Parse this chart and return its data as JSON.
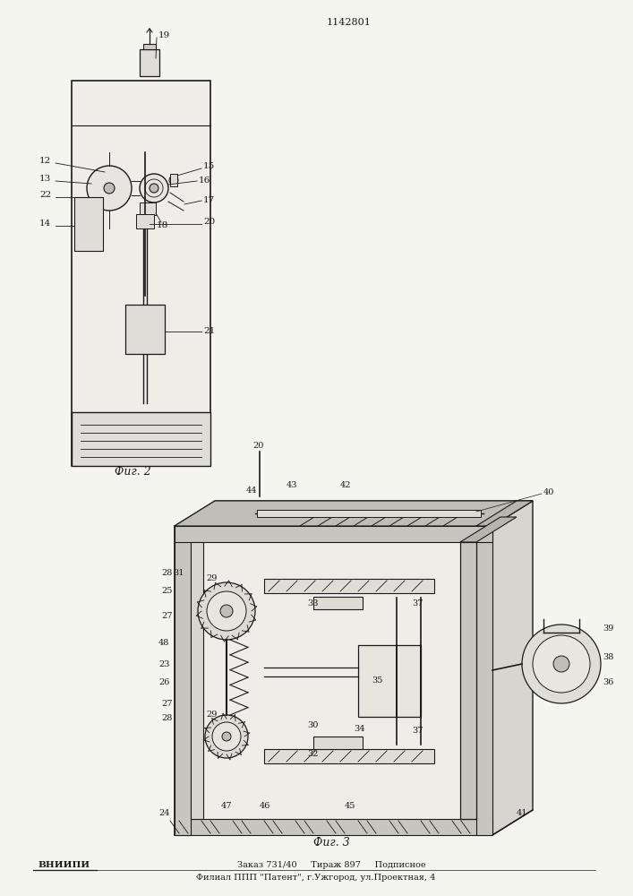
{
  "title": "1142801",
  "fig_width": 7.07,
  "fig_height": 10.0,
  "bg_color": "#f5f5f0",
  "line_color": "#1a1a1a",
  "fig2_caption": "Фиг. 2",
  "fig3_caption": "Фиг. 3",
  "footer_line1": "Заказ 731/40     Тираж 897     Подписное",
  "footer_line2": "Филиал ППП \"Патент\", г.Ужгород, ул.Проектная, 4",
  "footer_brand": "ВНИИПИ"
}
